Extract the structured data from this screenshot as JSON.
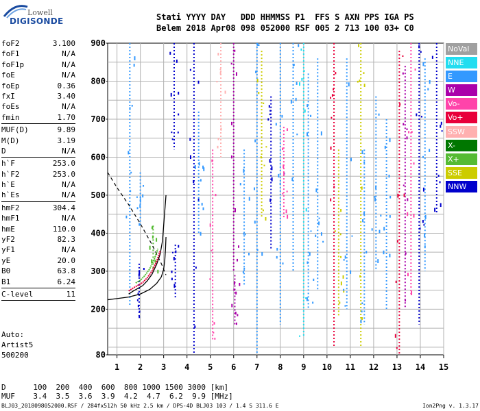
{
  "logo": {
    "line1": "Lowell",
    "line2": "DIGISONDE"
  },
  "header": {
    "labels": "Stati YYYY DAY   DDD HHMMSS P1  FFS S AXN PPS IGA PS",
    "values": "Belem 2018 Apr08 098 052000 RSF 005 2 713 100 03+ C0"
  },
  "params": {
    "group1": [
      {
        "label": "foF2",
        "value": "3.100"
      },
      {
        "label": "foF1",
        "value": "N/A"
      },
      {
        "label": "foF1p",
        "value": "N/A"
      },
      {
        "label": "foE",
        "value": "N/A"
      },
      {
        "label": "foEp",
        "value": "0.36"
      },
      {
        "label": "fxI",
        "value": "3.40"
      },
      {
        "label": "foEs",
        "value": "N/A"
      },
      {
        "label": "fmin",
        "value": "1.70"
      }
    ],
    "group2": [
      {
        "label": "MUF(D)",
        "value": "9.89"
      },
      {
        "label": "M(D)",
        "value": "3.19"
      },
      {
        "label": "D",
        "value": "N/A"
      }
    ],
    "group3": [
      {
        "label": "h`F",
        "value": "253.0"
      },
      {
        "label": "h`F2",
        "value": "253.0"
      },
      {
        "label": "h`E",
        "value": "N/A"
      },
      {
        "label": "h`Es",
        "value": "N/A"
      }
    ],
    "group4": [
      {
        "label": "hmF2",
        "value": "304.4"
      },
      {
        "label": "hmF1",
        "value": "N/A"
      },
      {
        "label": "hmE",
        "value": "110.0"
      },
      {
        "label": "yF2",
        "value": "82.3"
      },
      {
        "label": "yF1",
        "value": "N/A"
      },
      {
        "label": "yE",
        "value": "20.0"
      },
      {
        "label": "B0",
        "value": "63.8"
      },
      {
        "label": "B1",
        "value": "6.24"
      }
    ],
    "group5": [
      {
        "label": "C-level",
        "value": "11"
      }
    ]
  },
  "auto": {
    "line1": "Auto:",
    "line2": "Artist5",
    "line3": "500200"
  },
  "legend": [
    {
      "label": "NoVal",
      "color": "#a0a0a0"
    },
    {
      "label": "NNE",
      "color": "#22ddf0"
    },
    {
      "label": "E",
      "color": "#3399ff"
    },
    {
      "label": "W",
      "color": "#aa00aa"
    },
    {
      "label": "Vo-",
      "color": "#ff44aa"
    },
    {
      "label": "Vo+",
      "color": "#e8003a"
    },
    {
      "label": "SSW",
      "color": "#ffb0b0"
    },
    {
      "label": "X-",
      "color": "#007700"
    },
    {
      "label": "X+",
      "color": "#55bb33"
    },
    {
      "label": "SSE",
      "color": "#cccc00"
    },
    {
      "label": "NNW",
      "color": "#0000cc"
    }
  ],
  "dmuf": {
    "d_label": "D",
    "d_values": "100  200  400  600  800 1000 1500 3000 [km]",
    "muf_label": "MUF",
    "muf_values": "3.4  3.5  3.6  3.9  4.2  4.7  6.2  9.9 [MHz]"
  },
  "footer": {
    "left": "BLJ03_2018098052000.RSF / 284fx512h 50 kHz 2.5 km / DPS-4D BLJ03 103 / 1.4 S 311.6 E",
    "right": "Ion2Png v. 1.3.17"
  },
  "chart_data": {
    "type": "scatter",
    "x_ticks": [
      "1",
      "2",
      "3",
      "4",
      "5",
      "6",
      "7",
      "8",
      "9",
      "10",
      "11",
      "12",
      "13",
      "14",
      "15"
    ],
    "y_ticks": [
      "80",
      "200",
      "300",
      "400",
      "500",
      "600",
      "700",
      "800",
      "900"
    ],
    "xlim": [
      0.6,
      15
    ],
    "ylim": [
      80,
      900
    ],
    "grid": true,
    "legend_placement": "right",
    "trace_x": [
      1.5,
      1.7,
      1.9,
      2.1,
      2.3,
      2.5,
      2.7,
      2.85,
      2.95,
      3.0,
      3.05,
      3.1
    ],
    "trace_y": [
      240,
      248,
      255,
      262,
      275,
      292,
      318,
      345,
      380,
      420,
      460,
      500
    ],
    "profile_x": [
      0.6,
      1.0,
      1.5,
      2.0,
      2.4,
      2.7,
      2.9,
      3.0,
      3.05,
      3.08,
      3.1
    ],
    "profile_y": [
      225,
      228,
      232,
      240,
      252,
      268,
      285,
      305,
      330,
      360,
      390
    ],
    "dashed_x": [
      0.6,
      1.0,
      1.5,
      2.0,
      2.5,
      2.9,
      3.1
    ],
    "dashed_y": [
      560,
      520,
      475,
      425,
      370,
      320,
      290
    ],
    "echo_columns": [
      {
        "x": 1.55,
        "y0": 210,
        "y1": 900,
        "color": "#3399ff"
      },
      {
        "x": 1.95,
        "y0": 180,
        "y1": 320,
        "color": "#0000cc"
      },
      {
        "x": 2.0,
        "y0": 420,
        "y1": 560,
        "color": "#3399ff"
      },
      {
        "x": 2.55,
        "y0": 300,
        "y1": 420,
        "color": "#55bb33"
      },
      {
        "x": 3.45,
        "y0": 620,
        "y1": 900,
        "color": "#0000cc"
      },
      {
        "x": 3.5,
        "y0": 230,
        "y1": 370,
        "color": "#0000cc"
      },
      {
        "x": 4.3,
        "y0": 80,
        "y1": 900,
        "color": "#0000cc"
      },
      {
        "x": 4.5,
        "y0": 400,
        "y1": 720,
        "color": "#3399ff"
      },
      {
        "x": 5.1,
        "y0": 120,
        "y1": 620,
        "color": "#ff44aa"
      },
      {
        "x": 5.45,
        "y0": 600,
        "y1": 900,
        "color": "#ffb0b0"
      },
      {
        "x": 6.0,
        "y0": 300,
        "y1": 900,
        "color": "#aa00aa"
      },
      {
        "x": 6.05,
        "y0": 160,
        "y1": 290,
        "color": "#aa00aa"
      },
      {
        "x": 6.45,
        "y0": 260,
        "y1": 620,
        "color": "#3399ff"
      },
      {
        "x": 7.0,
        "y0": 80,
        "y1": 900,
        "color": "#3399ff"
      },
      {
        "x": 7.2,
        "y0": 440,
        "y1": 880,
        "color": "#cccc00"
      },
      {
        "x": 7.6,
        "y0": 360,
        "y1": 760,
        "color": "#0000cc"
      },
      {
        "x": 8.0,
        "y0": 160,
        "y1": 900,
        "color": "#3399ff"
      },
      {
        "x": 8.15,
        "y0": 440,
        "y1": 680,
        "color": "#ff44aa"
      },
      {
        "x": 8.55,
        "y0": 300,
        "y1": 900,
        "color": "#3399ff"
      },
      {
        "x": 9.0,
        "y0": 130,
        "y1": 900,
        "color": "#22ddf0"
      },
      {
        "x": 9.2,
        "y0": 200,
        "y1": 820,
        "color": "#3399ff"
      },
      {
        "x": 9.6,
        "y0": 250,
        "y1": 860,
        "color": "#3399ff"
      },
      {
        "x": 10.3,
        "y0": 100,
        "y1": 900,
        "color": "#e8003a"
      },
      {
        "x": 10.5,
        "y0": 180,
        "y1": 620,
        "color": "#cccc00"
      },
      {
        "x": 10.85,
        "y0": 200,
        "y1": 860,
        "color": "#3399ff"
      },
      {
        "x": 11.45,
        "y0": 100,
        "y1": 900,
        "color": "#cccc00"
      },
      {
        "x": 11.6,
        "y0": 160,
        "y1": 620,
        "color": "#3399ff"
      },
      {
        "x": 12.1,
        "y0": 300,
        "y1": 760,
        "color": "#3399ff"
      },
      {
        "x": 12.55,
        "y0": 200,
        "y1": 700,
        "color": "#3399ff"
      },
      {
        "x": 13.1,
        "y0": 80,
        "y1": 880,
        "color": "#e8003a"
      },
      {
        "x": 13.35,
        "y0": 200,
        "y1": 840,
        "color": "#aa00aa"
      },
      {
        "x": 13.6,
        "y0": 240,
        "y1": 900,
        "color": "#ff44aa"
      },
      {
        "x": 13.95,
        "y0": 160,
        "y1": 900,
        "color": "#0000cc"
      },
      {
        "x": 14.2,
        "y0": 300,
        "y1": 860,
        "color": "#3399ff"
      },
      {
        "x": 14.7,
        "y0": 450,
        "y1": 900,
        "color": "#0000cc"
      }
    ]
  }
}
